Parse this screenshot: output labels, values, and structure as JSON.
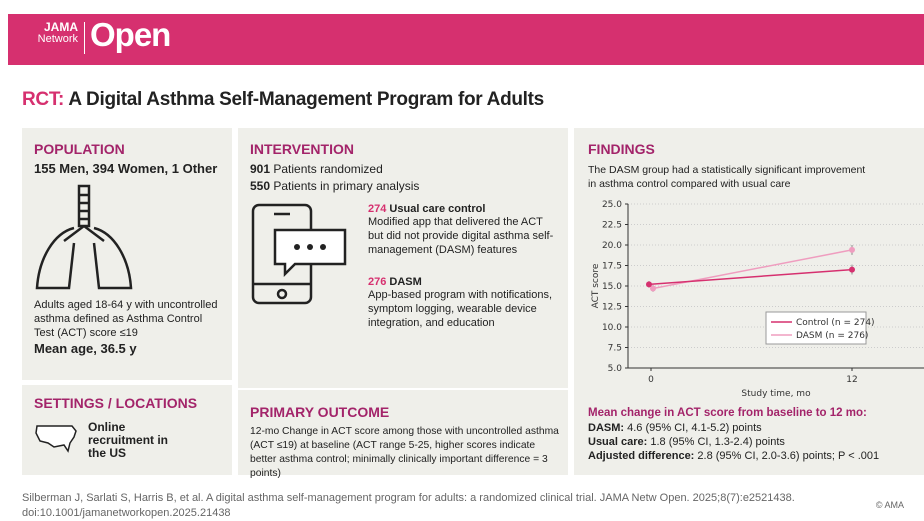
{
  "header": {
    "logo_jama": "JAMA",
    "logo_network": "Network",
    "logo_open": "Open",
    "logo_tm": "TM"
  },
  "title": {
    "prefix": "RCT:",
    "text": "A Digital Asthma Self-Management Program for Adults"
  },
  "population": {
    "heading": "POPULATION",
    "counts": "155 Men, 394 Women, 1 Other",
    "description": "Adults aged 18-64 y with uncontrolled asthma defined as Asthma Control Test (ACT) score ≤19",
    "mean_age": "Mean age, 36.5 y"
  },
  "settings": {
    "heading": "SETTINGS / LOCATIONS",
    "text": "Online recruitment in the US"
  },
  "intervention": {
    "heading": "INTERVENTION",
    "randomized_n": "901",
    "randomized_label": "Patients randomized",
    "analysis_n": "550",
    "analysis_label": "Patients in primary analysis",
    "groups": [
      {
        "n": "274",
        "name": "Usual care control",
        "desc": "Modified app that delivered the ACT but did not provide digital asthma self-management (DASM) features"
      },
      {
        "n": "276",
        "name": "DASM",
        "desc": "App-based program with notifications, symptom logging, wearable device integration, and education"
      }
    ]
  },
  "primary_outcome": {
    "heading": "PRIMARY OUTCOME",
    "text": "12-mo Change in ACT score among those with uncontrolled asthma (ACT ≤19) at baseline (ACT range 5-25, higher scores indicate better asthma control; minimally clinically important difference = 3 points)"
  },
  "findings": {
    "heading": "FINDINGS",
    "summary": "The DASM group had a statistically significant improvement in asthma control compared with usual care",
    "result_heading": "Mean change in ACT score from baseline to 12 mo:",
    "results": [
      {
        "label": "DASM:",
        "value": "4.6 (95% CI, 4.1-5.2) points"
      },
      {
        "label": "Usual care:",
        "value": "1.8 (95% CI, 1.3-2.4) points"
      },
      {
        "label": "Adjusted difference:",
        "value": "2.8 (95% CI, 2.0-3.6) points; P < .001"
      }
    ]
  },
  "chart_data": {
    "type": "line",
    "xlabel": "Study time, mo",
    "ylabel": "ACT score",
    "x": [
      0,
      12
    ],
    "xticks": [
      "0",
      "12"
    ],
    "ylim": [
      5,
      25
    ],
    "yticks": [
      "5.0",
      "7.5",
      "10.0",
      "12.5",
      "15.0",
      "17.5",
      "20.0",
      "22.5",
      "25.0"
    ],
    "legend_position": "bottom-right",
    "series": [
      {
        "name": "Control (n = 274)",
        "values": [
          15.2,
          17.0
        ],
        "err": [
          0.4,
          0.6
        ],
        "color": "#d6306f"
      },
      {
        "name": "DASM (n = 276)",
        "values": [
          14.7,
          19.4
        ],
        "err": [
          0.4,
          0.6
        ],
        "color": "#ef9dbf"
      }
    ]
  },
  "footer": {
    "citation": "Silberman J, Sarlati S, Harris B, et al. A digital asthma self-management program for adults: a randomized clinical trial. JAMA Netw Open. 2025;8(7):e2521438.",
    "doi": "doi:10.1001/jamanetworkopen.2025.21438",
    "copyright": "© AMA"
  }
}
